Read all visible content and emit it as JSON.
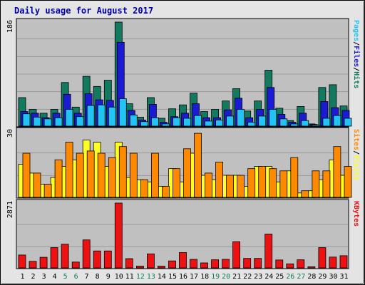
{
  "chart_data": {
    "type": "bar",
    "title": "Daily usage for August 2017",
    "colors": {
      "hits": "#127a5e",
      "files": "#1b1bd6",
      "pages": "#22c3f5",
      "visits": "#ffff22",
      "sites": "#ff8a00",
      "kbytes": "#ee1111",
      "title": "#0000aa",
      "plot_bg": "#c0c0c0",
      "frame_bg": "#e4e4e4",
      "weekend_label": "#127a5e"
    },
    "x": [
      "1",
      "2",
      "3",
      "4",
      "5",
      "6",
      "7",
      "8",
      "9",
      "10",
      "11",
      "12",
      "13",
      "14",
      "15",
      "16",
      "17",
      "18",
      "19",
      "20",
      "21",
      "22",
      "23",
      "24",
      "25",
      "26",
      "27",
      "28",
      "29",
      "30",
      "31"
    ],
    "weekend_days": [
      "5",
      "6",
      "12",
      "13",
      "19",
      "20",
      "26",
      "27"
    ],
    "panels": [
      {
        "name": "hits-files-pages",
        "ymax_label": "186",
        "ymax": 186,
        "right_labels": [
          {
            "text": "Pages",
            "color": "#22c3f5"
          },
          {
            "text": "/",
            "color": "#000000"
          },
          {
            "text": "Files",
            "color": "#1b1bd6"
          },
          {
            "text": "/",
            "color": "#000000"
          },
          {
            "text": "Hits",
            "color": "#127a5e"
          }
        ],
        "series": [
          {
            "name": "Hits",
            "color": "#127a5e",
            "values": [
              51,
              30,
              23,
              30,
              78,
              34,
              89,
              71,
              82,
              186,
              40,
              16,
              51,
              14,
              31,
              38,
              59,
              26,
              30,
              45,
              67,
              27,
              45,
              100,
              32,
              10,
              35,
              4,
              69,
              74,
              36
            ]
          },
          {
            "name": "Files",
            "color": "#1b1bd6",
            "values": [
              26,
              23,
              15,
              23,
              57,
              23,
              58,
              47,
              46,
              150,
              28,
              11,
              39,
              7,
              17,
              23,
              40,
              15,
              15,
              29,
              50,
              15,
              30,
              69,
              21,
              7,
              23,
              3,
              44,
              33,
              28
            ]
          },
          {
            "name": "Pages",
            "color": "#22c3f5",
            "values": [
              22,
              16,
              13,
              15,
              30,
              17,
              37,
              38,
              34,
              49,
              20,
              8,
              15,
              4,
              15,
              14,
              19,
              9,
              11,
              18,
              30,
              7,
              18,
              30,
              13,
              4,
              10,
              2,
              14,
              19,
              14
            ]
          }
        ]
      },
      {
        "name": "visits-sites",
        "ymax_label": "30",
        "ymax": 30,
        "right_labels": [
          {
            "text": "Sites",
            "color": "#ff8a00"
          },
          {
            "text": "/",
            "color": "#000000"
          },
          {
            "text": "Visits",
            "color": "#ffff22"
          }
        ],
        "series": [
          {
            "name": "Visits",
            "color": "#ffff22",
            "values": [
              15,
              11,
              6,
              9,
              14,
              17,
              26,
              25,
              14,
              25,
              9,
              8,
              7,
              5,
              13,
              7,
              20,
              10,
              8,
              10,
              10,
              5,
              14,
              14,
              7,
              12,
              2,
              3,
              8,
              17,
              10
            ]
          },
          {
            "name": "Sites",
            "color": "#ff8a00",
            "values": [
              20,
              11,
              6,
              17,
              25,
              20,
              21,
              20,
              18,
              23,
              20,
              8,
              20,
              5,
              13,
              22,
              29,
              11,
              16,
              10,
              10,
              13,
              14,
              13,
              12,
              18,
              3,
              12,
              12,
              23,
              14
            ]
          }
        ]
      },
      {
        "name": "kbytes",
        "ymax_label": "2871",
        "ymax": 2871,
        "right_labels": [
          {
            "text": "KBytes",
            "color": "#ee1111"
          }
        ],
        "series": [
          {
            "name": "KBytes",
            "color": "#ee1111",
            "values": [
              570,
              290,
              470,
              900,
              1050,
              260,
              1240,
              750,
              750,
              2871,
              410,
              80,
              620,
              80,
              310,
              680,
              380,
              220,
              360,
              380,
              1160,
              420,
              420,
              1500,
              350,
              180,
              360,
              50,
              900,
              480,
              540
            ]
          }
        ]
      }
    ]
  }
}
